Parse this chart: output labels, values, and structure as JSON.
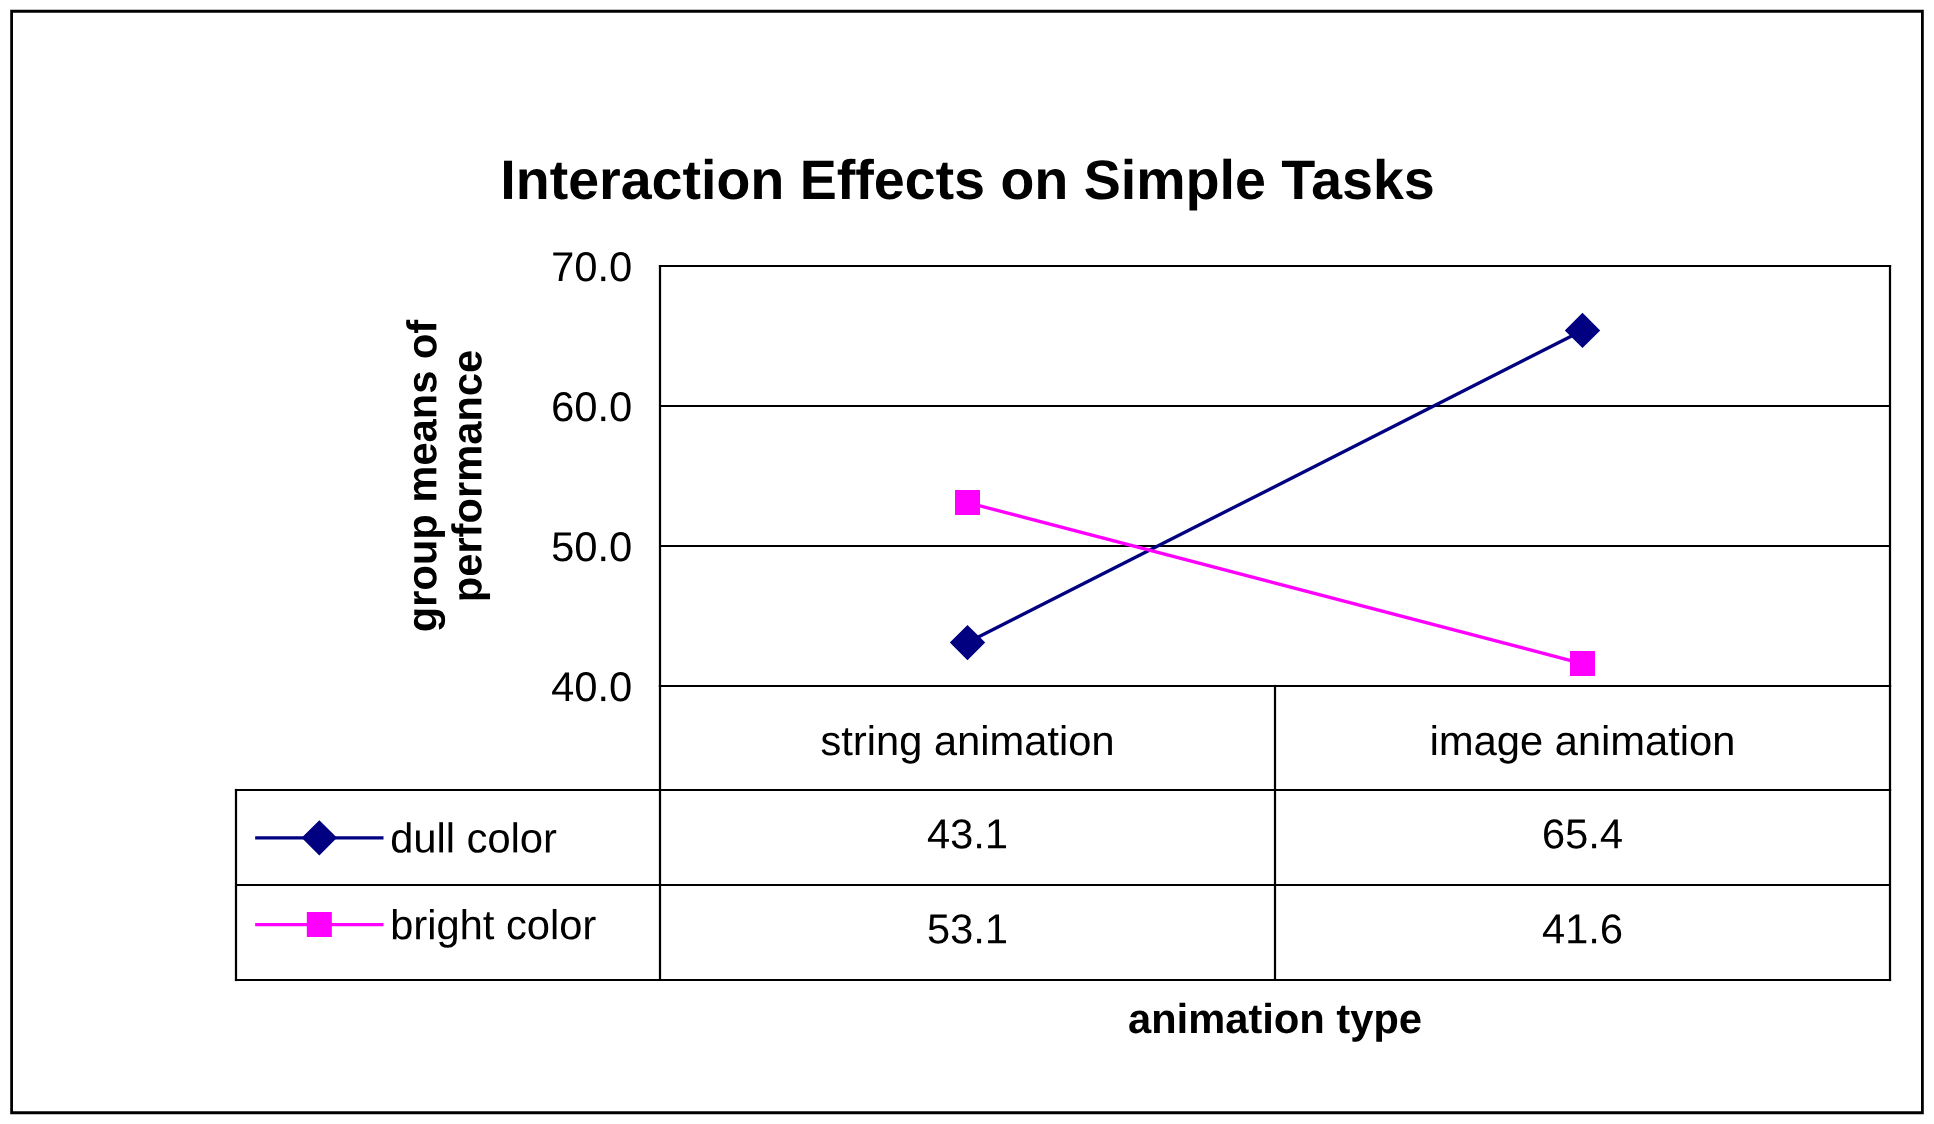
{
  "chart_data": {
    "type": "line",
    "title": "Interaction Effects on Simple Tasks",
    "ylabel": "group means of\nperformance",
    "annotations": [
      "animation type"
    ],
    "categories": [
      "string animation",
      "image animation"
    ],
    "series": [
      {
        "name": "dull color",
        "color": "#000080",
        "values": [
          43.1,
          65.4
        ],
        "marker": "diamond"
      },
      {
        "name": "bright color",
        "color": "#ff00ff",
        "values": [
          53.1,
          41.6
        ],
        "marker": "square"
      }
    ],
    "ylim": [
      40,
      70
    ],
    "yticks": [
      {
        "value": 40,
        "label": "40.0"
      },
      {
        "value": 50,
        "label": "50.0"
      },
      {
        "value": 60,
        "label": "60.0"
      },
      {
        "value": 70,
        "label": "70.0"
      }
    ],
    "grid": "y",
    "legend": "bottom left",
    "data_labels": true,
    "line_style": "solid"
  }
}
